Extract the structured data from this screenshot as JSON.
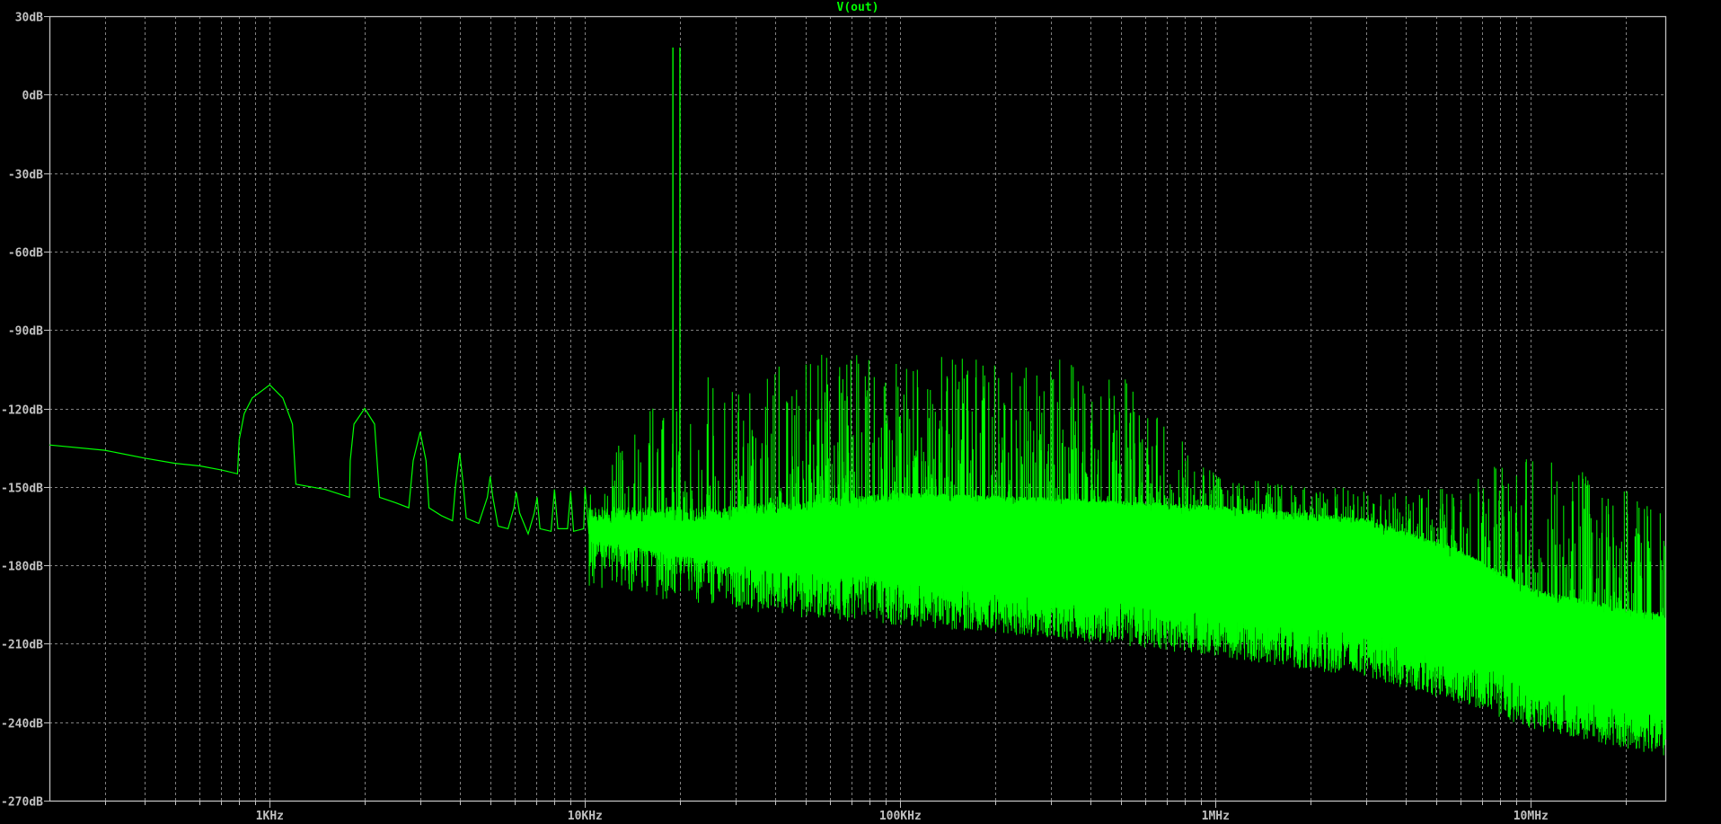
{
  "chart_data": {
    "type": "line",
    "title": "V(out)",
    "xlabel": "",
    "ylabel": "",
    "x_scale": "log",
    "xlim": [
      200,
      26700000
    ],
    "ylim": [
      -270,
      30
    ],
    "grid": true,
    "colors": {
      "trace": "#00ff00",
      "background": "#000000",
      "grid": "#808080",
      "axis": "#c0c0c0",
      "labels": "#c0c0c0"
    },
    "y_ticks": [
      {
        "value": 30,
        "label": "30dB"
      },
      {
        "value": 0,
        "label": "0dB"
      },
      {
        "value": -30,
        "label": "-30dB"
      },
      {
        "value": -60,
        "label": "-60dB"
      },
      {
        "value": -90,
        "label": "-90dB"
      },
      {
        "value": -120,
        "label": "-120dB"
      },
      {
        "value": -150,
        "label": "-150dB"
      },
      {
        "value": -180,
        "label": "-180dB"
      },
      {
        "value": -210,
        "label": "-210dB"
      },
      {
        "value": -240,
        "label": "-240dB"
      },
      {
        "value": -270,
        "label": "-270dB"
      }
    ],
    "x_ticks": [
      {
        "value": 1000,
        "label": "1KHz"
      },
      {
        "value": 10000,
        "label": "10KHz"
      },
      {
        "value": 100000,
        "label": "100KHz"
      },
      {
        "value": 1000000,
        "label": "1MHz"
      },
      {
        "value": 10000000,
        "label": "10MHz"
      }
    ],
    "series": [
      {
        "name": "V(out)",
        "low_frequency_points": [
          [
            200,
            -134
          ],
          [
            300,
            -136
          ],
          [
            400,
            -139
          ],
          [
            500,
            -141
          ],
          [
            600,
            -142
          ],
          [
            700,
            -143.5
          ],
          [
            790,
            -145
          ],
          [
            800,
            -132
          ],
          [
            830,
            -122
          ],
          [
            880,
            -116
          ],
          [
            1000,
            -111
          ],
          [
            1100,
            -116
          ],
          [
            1180,
            -126
          ],
          [
            1210,
            -149
          ],
          [
            1500,
            -151
          ],
          [
            1790,
            -154
          ],
          [
            1800,
            -140
          ],
          [
            1850,
            -126
          ],
          [
            2000,
            -120
          ],
          [
            2150,
            -126
          ],
          [
            2230,
            -154
          ],
          [
            2500,
            -156
          ],
          [
            2760,
            -158
          ],
          [
            2850,
            -140
          ],
          [
            3000,
            -129
          ],
          [
            3130,
            -140
          ],
          [
            3200,
            -158
          ],
          [
            3500,
            -161
          ],
          [
            3800,
            -163
          ],
          [
            3880,
            -150
          ],
          [
            4000,
            -137
          ],
          [
            4100,
            -148
          ],
          [
            4200,
            -162
          ],
          [
            4600,
            -164
          ],
          [
            4900,
            -154
          ],
          [
            5000,
            -146
          ],
          [
            5100,
            -154
          ],
          [
            5300,
            -165
          ],
          [
            5700,
            -166
          ],
          [
            5950,
            -158
          ],
          [
            6050,
            -152
          ],
          [
            6200,
            -160
          ],
          [
            6600,
            -168
          ],
          [
            6900,
            -160
          ],
          [
            7050,
            -154
          ],
          [
            7200,
            -166
          ],
          [
            7800,
            -167
          ],
          [
            8000,
            -151
          ],
          [
            8200,
            -166
          ],
          [
            8800,
            -166
          ],
          [
            9000,
            -152
          ],
          [
            9200,
            -167
          ],
          [
            9900,
            -166
          ],
          [
            10000,
            -150
          ],
          [
            10300,
            -168
          ]
        ],
        "tones": [
          {
            "frequency": 19000,
            "db": 18
          },
          {
            "frequency": 20000,
            "db": 18
          }
        ],
        "noise_floor": {
          "frequency": [
            10300,
            30000,
            100000,
            300000,
            1000000,
            3000000,
            6000000,
            10000000,
            26700000
          ],
          "lower_db": [
            -170,
            -180,
            -185,
            -190,
            -197,
            -205,
            -215,
            -225,
            -235
          ],
          "upper_db": [
            -164,
            -163,
            -158,
            -160,
            -163,
            -168,
            -180,
            -195,
            -205
          ]
        },
        "spur_envelope": {
          "frequency": [
            10300,
            15000,
            20000,
            30000,
            50000,
            60000,
            100000,
            200000,
            300000,
            500000,
            700000,
            1000000,
            2000000,
            5000000,
            10000000,
            20000000,
            26700000
          ],
          "peak_db": [
            -145,
            -120,
            -105,
            -110,
            -97,
            -97,
            -102,
            -97,
            -98,
            -105,
            -125,
            -145,
            -150,
            -150,
            -135,
            -150,
            -160
          ]
        }
      }
    ]
  }
}
